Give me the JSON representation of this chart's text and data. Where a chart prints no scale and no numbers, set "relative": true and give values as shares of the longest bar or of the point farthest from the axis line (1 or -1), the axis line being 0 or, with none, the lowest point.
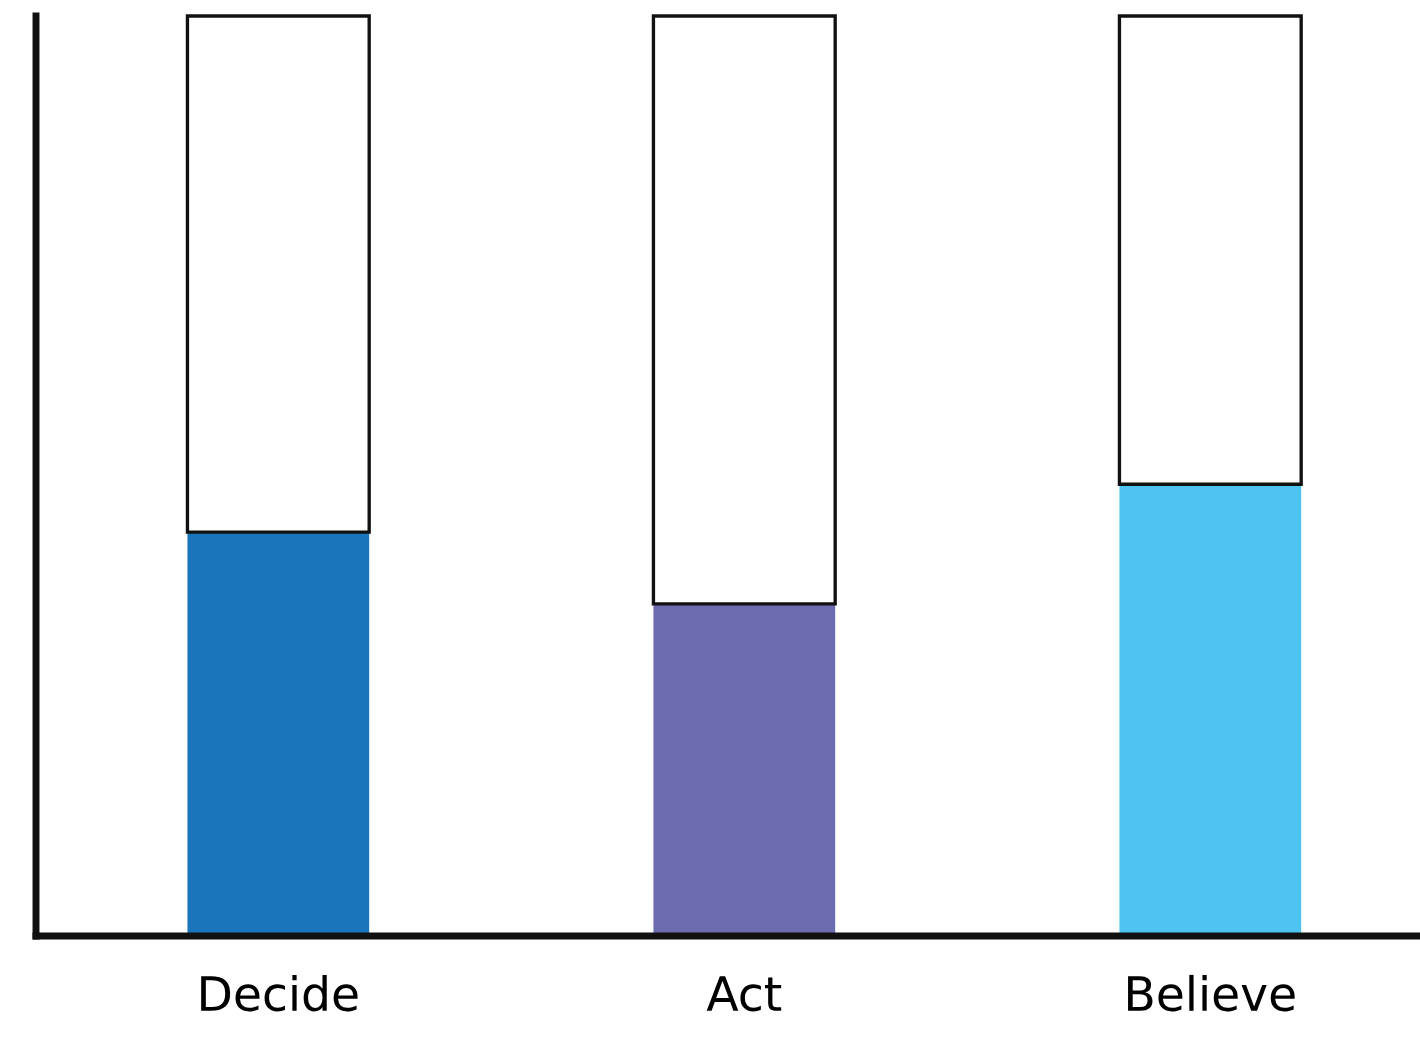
{
  "chart_data": {
    "type": "bar",
    "relative": true,
    "stacked": true,
    "categories": [
      "Decide",
      "Act",
      "Believe"
    ],
    "series": [
      {
        "colors": [
          "#1b75bb",
          "#6c6bb0",
          "#4dc3ef"
        ],
        "values": [
          0.439,
          0.361,
          0.491
        ]
      },
      {
        "color": "#ffffff",
        "values": [
          0.561,
          0.639,
          0.509
        ]
      }
    ],
    "grid": false,
    "legend": false
  }
}
